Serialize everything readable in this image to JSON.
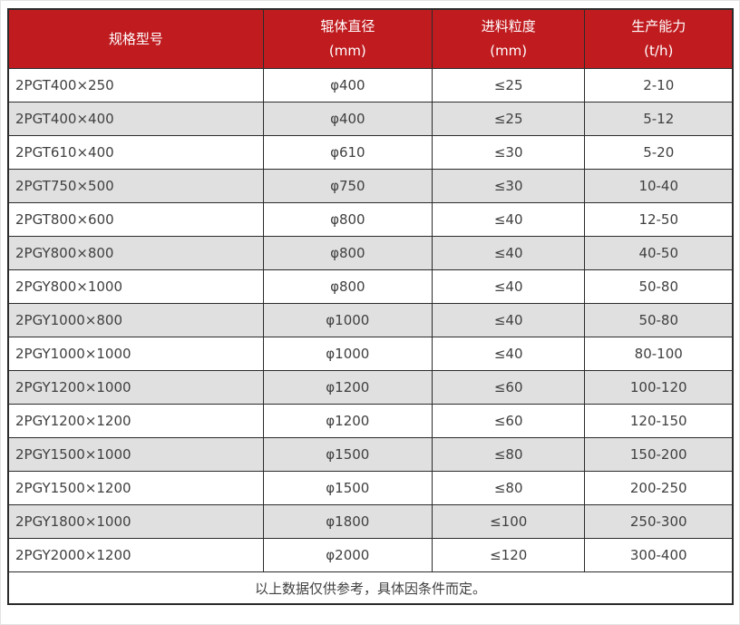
{
  "table": {
    "headers": [
      {
        "title": "规格型号",
        "unit": ""
      },
      {
        "title": "辊体直径",
        "unit": "(mm)"
      },
      {
        "title": "进料粒度",
        "unit": "(mm)"
      },
      {
        "title": "生产能力",
        "unit": "(t/h)"
      }
    ],
    "rows": [
      [
        "2PGT400×250",
        "φ400",
        "≤25",
        "2-10"
      ],
      [
        "2PGT400×400",
        "φ400",
        "≤25",
        "5-12"
      ],
      [
        "2PGT610×400",
        "φ610",
        "≤30",
        "5-20"
      ],
      [
        "2PGT750×500",
        "φ750",
        "≤30",
        "10-40"
      ],
      [
        "2PGT800×600",
        "φ800",
        "≤40",
        "12-50"
      ],
      [
        "2PGY800×800",
        "φ800",
        "≤40",
        "40-50"
      ],
      [
        "2PGY800×1000",
        "φ800",
        "≤40",
        "50-80"
      ],
      [
        "2PGY1000×800",
        "φ1000",
        "≤40",
        "50-80"
      ],
      [
        "2PGY1000×1000",
        "φ1000",
        "≤40",
        "80-100"
      ],
      [
        "2PGY1200×1000",
        "φ1200",
        "≤60",
        "100-120"
      ],
      [
        "2PGY1200×1200",
        "φ1200",
        "≤60",
        "120-150"
      ],
      [
        "2PGY1500×1000",
        "φ1500",
        "≤80",
        "150-200"
      ],
      [
        "2PGY1500×1200",
        "φ1500",
        "≤80",
        "200-250"
      ],
      [
        "2PGY1800×1000",
        "φ1800",
        "≤100",
        "250-300"
      ],
      [
        "2PGY2000×1200",
        "φ2000",
        "≤120",
        "300-400"
      ]
    ],
    "footer_note": "以上数据仅供参考，具体因条件而定。"
  },
  "colors": {
    "header_bg": "#c01c20",
    "header_text": "#ffffff",
    "row_bg": "#ffffff",
    "row_alt_bg": "#e0e0e0",
    "border": "#2b2b2b",
    "text": "#404040"
  },
  "chart_data": {
    "type": "table",
    "title": "",
    "columns": [
      "规格型号",
      "辊体直径 (mm)",
      "进料粒度 (mm)",
      "生产能力 (t/h)"
    ],
    "rows": [
      [
        "2PGT400×250",
        "φ400",
        "≤25",
        "2-10"
      ],
      [
        "2PGT400×400",
        "φ400",
        "≤25",
        "5-12"
      ],
      [
        "2PGT610×400",
        "φ610",
        "≤30",
        "5-20"
      ],
      [
        "2PGT750×500",
        "φ750",
        "≤30",
        "10-40"
      ],
      [
        "2PGT800×600",
        "φ800",
        "≤40",
        "12-50"
      ],
      [
        "2PGY800×800",
        "φ800",
        "≤40",
        "40-50"
      ],
      [
        "2PGY800×1000",
        "φ800",
        "≤40",
        "50-80"
      ],
      [
        "2PGY1000×800",
        "φ1000",
        "≤40",
        "50-80"
      ],
      [
        "2PGY1000×1000",
        "φ1000",
        "≤40",
        "80-100"
      ],
      [
        "2PGY1200×1000",
        "φ1200",
        "≤60",
        "100-120"
      ],
      [
        "2PGY1200×1200",
        "φ1200",
        "≤60",
        "120-150"
      ],
      [
        "2PGY1500×1000",
        "φ1500",
        "≤80",
        "150-200"
      ],
      [
        "2PGY1500×1200",
        "φ1500",
        "≤80",
        "200-250"
      ],
      [
        "2PGY1800×1000",
        "φ1800",
        "≤100",
        "250-300"
      ],
      [
        "2PGY2000×1200",
        "φ2000",
        "≤120",
        "300-400"
      ]
    ],
    "footnote": "以上数据仅供参考，具体因条件而定。"
  }
}
